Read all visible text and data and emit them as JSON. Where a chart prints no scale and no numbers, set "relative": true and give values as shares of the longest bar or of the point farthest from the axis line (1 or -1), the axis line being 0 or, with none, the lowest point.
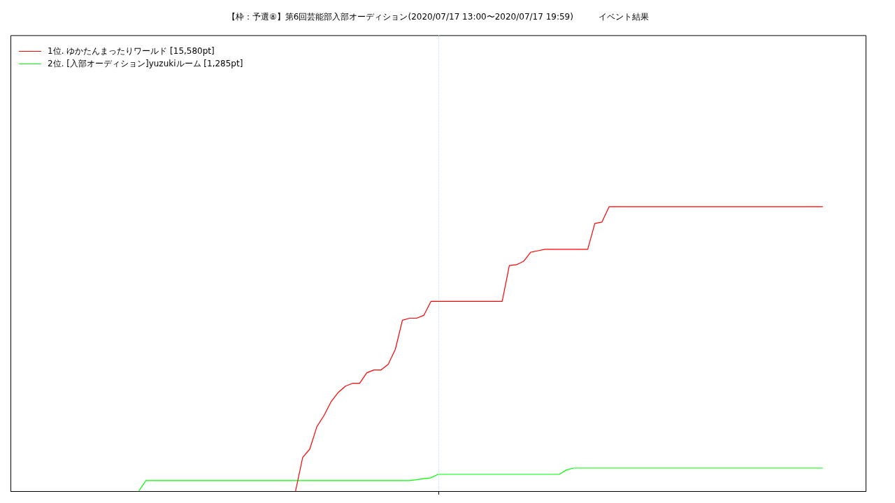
{
  "chart_data": {
    "type": "line",
    "title": "【枠：予選⑧】第6回芸能部入部オーディション(2020/07/17 13:00〜2020/07/17 19:59)　　　イベント結果",
    "relative": true,
    "tick_labels": false,
    "legend": "top left",
    "categories": [
      null,
      null,
      null,
      null,
      null,
      null,
      null,
      null,
      null,
      null,
      null,
      null,
      null,
      null,
      null,
      null,
      null,
      null,
      null,
      null,
      null,
      null,
      null,
      null,
      null,
      null,
      null,
      null,
      null,
      null,
      null,
      null,
      null,
      null,
      null,
      null,
      null,
      null,
      null,
      null,
      null,
      null,
      null,
      null,
      null,
      null,
      null,
      null,
      null,
      null,
      null,
      null,
      null,
      null,
      null,
      null,
      null,
      null,
      null,
      null,
      null,
      null,
      null,
      null,
      null,
      null,
      null,
      null,
      null,
      null,
      null,
      null,
      null,
      null,
      null,
      null,
      null,
      null,
      null,
      null,
      null,
      null,
      null,
      null,
      null,
      null,
      null,
      null,
      null,
      null,
      null,
      null,
      null,
      null,
      null,
      null,
      null,
      null,
      null,
      null,
      null,
      null,
      null,
      null,
      null,
      null,
      null,
      null,
      null,
      null,
      null,
      null,
      null,
      null,
      null,
      null,
      null,
      null,
      null,
      null,
      null
    ],
    "series": [
      {
        "name": "1位. ゆかたんまったりワールド [15,580pt]",
        "color": "#ff0000",
        "values": [
          null,
          null,
          null,
          null,
          null,
          null,
          null,
          null,
          null,
          null,
          null,
          null,
          null,
          null,
          null,
          null,
          null,
          null,
          null,
          null,
          null,
          null,
          null,
          null,
          null,
          null,
          null,
          null,
          null,
          null,
          null,
          null,
          null,
          null,
          null,
          null,
          null,
          null,
          null,
          null,
          0,
          0.118,
          0.148,
          0.227,
          0.266,
          0.315,
          0.347,
          0.369,
          0.379,
          0.379,
          0.416,
          0.426,
          0.426,
          0.446,
          0.498,
          0.601,
          0.608,
          0.608,
          0.618,
          0.667,
          0.667,
          0.667,
          0.667,
          0.667,
          0.667,
          0.667,
          0.667,
          0.667,
          0.667,
          0.667,
          0.793,
          0.796,
          0.808,
          0.84,
          0.845,
          0.85,
          0.85,
          0.85,
          0.85,
          0.85,
          0.85,
          0.85,
          0.941,
          0.946,
          1,
          1,
          1,
          1,
          1,
          1,
          1,
          1,
          1,
          1,
          1,
          1,
          1,
          1,
          1,
          1,
          1,
          1,
          1,
          1,
          1,
          1,
          1,
          1,
          1,
          1,
          1,
          1,
          1,
          1,
          1,
          null,
          null,
          null,
          null,
          null,
          null
        ]
      },
      {
        "name": "2位. [入部オーディション]yuzukiルーム [1,285pt]",
        "color": "#00ff00",
        "values": [
          null,
          null,
          null,
          null,
          null,
          null,
          null,
          null,
          null,
          null,
          null,
          null,
          null,
          null,
          null,
          null,
          null,
          null,
          0,
          0.037,
          0.037,
          0.037,
          0.037,
          0.037,
          0.037,
          0.037,
          0.037,
          0.037,
          0.037,
          0.037,
          0.037,
          0.037,
          0.037,
          0.037,
          0.037,
          0.037,
          0.037,
          0.037,
          0.037,
          0.037,
          0.037,
          0.037,
          0.037,
          0.037,
          0.037,
          0.037,
          0.037,
          0.037,
          0.037,
          0.037,
          0.037,
          0.037,
          0.037,
          0.037,
          0.037,
          0.037,
          0.037,
          0.04,
          0.044,
          0.047,
          0.059,
          0.059,
          0.059,
          0.059,
          0.059,
          0.059,
          0.059,
          0.059,
          0.059,
          0.059,
          0.059,
          0.059,
          0.059,
          0.059,
          0.059,
          0.059,
          0.059,
          0.059,
          0.074,
          0.081,
          0.081,
          0.081,
          0.081,
          0.081,
          0.081,
          0.081,
          0.081,
          0.081,
          0.081,
          0.081,
          0.081,
          0.081,
          0.081,
          0.081,
          0.081,
          0.081,
          0.081,
          0.081,
          0.081,
          0.081,
          0.081,
          0.081,
          0.081,
          0.081,
          0.081,
          0.081,
          0.081,
          0.081,
          0.081,
          0.081,
          0.081,
          0.081,
          0.081,
          0.081,
          0.081,
          null,
          null,
          null,
          null,
          null,
          null
        ]
      }
    ]
  }
}
